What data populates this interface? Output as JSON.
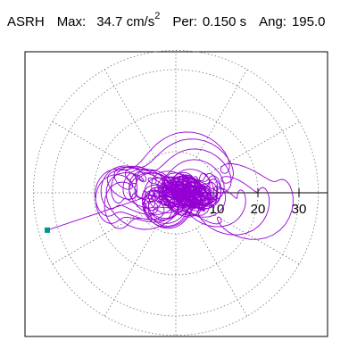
{
  "header": {
    "station": "ASRH",
    "max_label": "Max:",
    "max_value": "34.7 cm/s",
    "max_exp": "2",
    "per_label": "Per:",
    "per_value": "0.150 s",
    "ang_label": "Ang:",
    "ang_value": "195.0"
  },
  "colors": {
    "trace": "#9400d3",
    "marker": "#009988",
    "grid": "#777777",
    "axis": "#000000",
    "frame": "#000000"
  },
  "chart_data": {
    "type": "scatter",
    "title": "ASRH   Max:  34.7 cm/s 2   Per:  0.150 s   Ang: 195.0",
    "xlabel": "",
    "ylabel": "",
    "polar_grid": true,
    "radial_ticks": [
      10,
      20,
      30
    ],
    "radial_max": 34.7,
    "angular_spokes_deg": [
      0,
      30,
      60,
      90,
      120,
      150,
      180,
      210,
      240,
      270,
      300,
      330
    ],
    "max_amplitude": 34.7,
    "max_amplitude_unit": "cm/s2",
    "period_s": 0.15,
    "angle_deg": 195.0,
    "end_marker": {
      "x": -31.3,
      "y": -9.1
    }
  }
}
